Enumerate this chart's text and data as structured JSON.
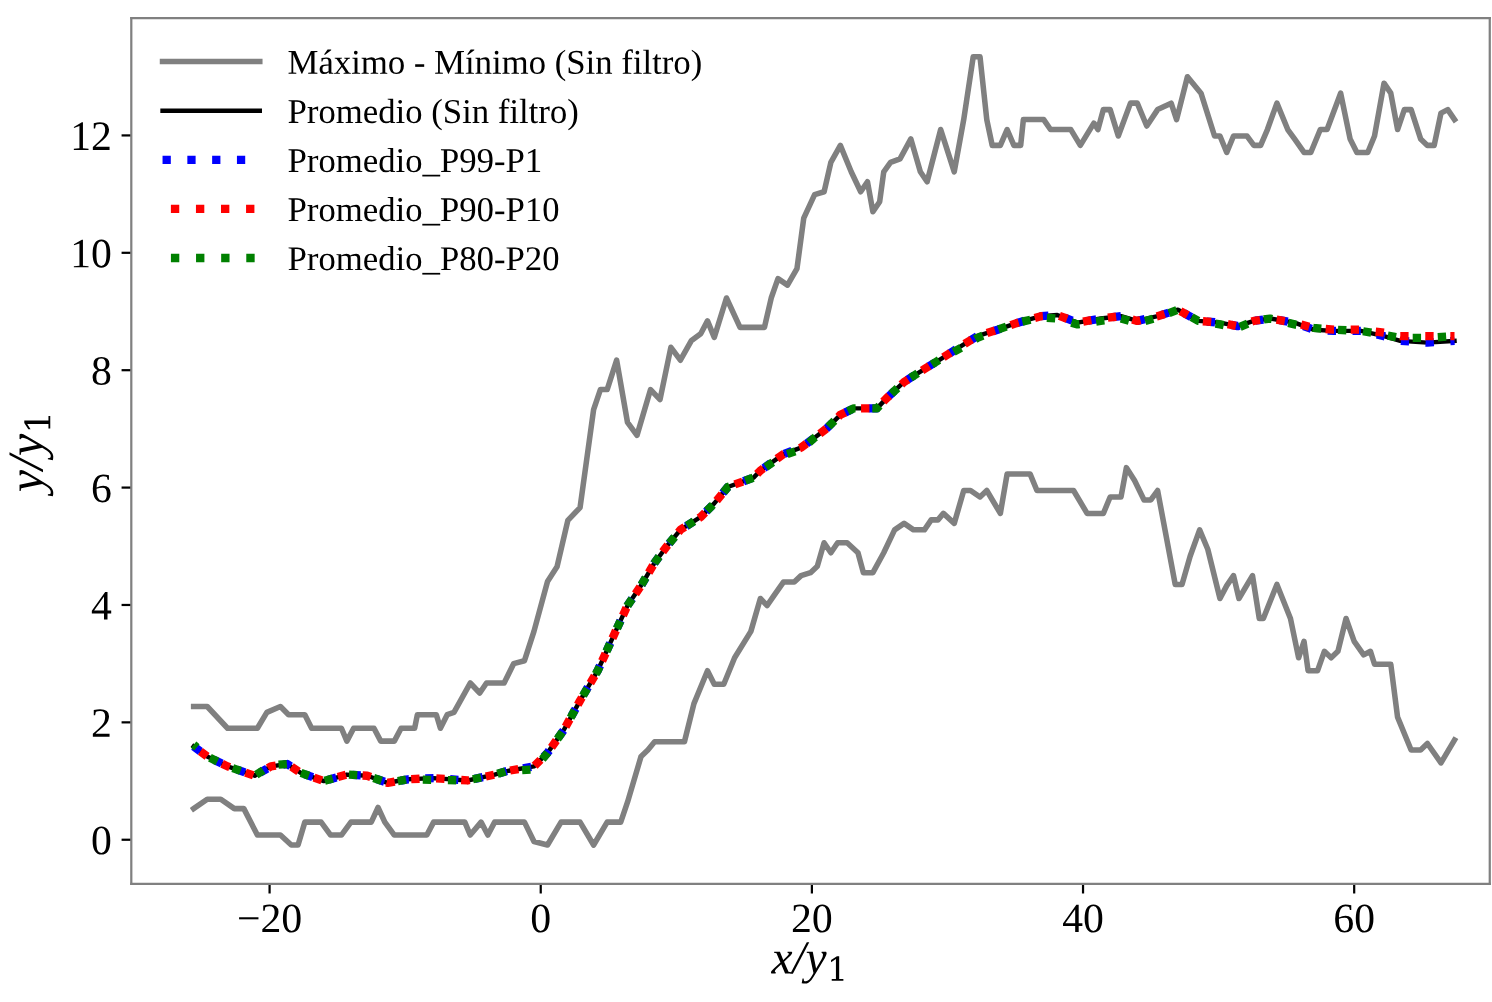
{
  "chart_data": {
    "type": "line",
    "xlabel": "x/y$_{1}$",
    "ylabel": "y/y$_{1}$",
    "xlim": [
      -30.2,
      70.0
    ],
    "ylim": [
      -0.75,
      14.0
    ],
    "xticks": [
      -20,
      0,
      20,
      40,
      60
    ],
    "yticks": [
      0,
      2,
      4,
      6,
      8,
      10,
      12
    ],
    "grid": false,
    "legend": "top left",
    "series": [
      {
        "name": "Máximo - Mínimo (Sin filtro)",
        "color": "#808080",
        "line_style": "solid",
        "x": [
          -25.6,
          -24.6,
          -23.1,
          -20.9,
          -20.2,
          -19.2,
          -18.6,
          -17.4,
          -16.9,
          -14.7,
          -14.3,
          -13.8,
          -12.3,
          -11.8,
          -10.8,
          -10.3,
          -9.3,
          -9.1,
          -7.7,
          -7.4,
          -6.9,
          -6.4,
          -5.2,
          -4.5,
          -4.0,
          -2.7,
          -2.0,
          -1.2,
          -0.5,
          0.5,
          1.2,
          2.0,
          2.9,
          3.9,
          4.4,
          4.9,
          5.6,
          6.4,
          7.1,
          8.1,
          8.8,
          9.6,
          10.3,
          11.1,
          11.8,
          12.3,
          12.8,
          13.7,
          14.7,
          16.5,
          17.0,
          17.5,
          18.2,
          18.9,
          19.4,
          20.2,
          20.9,
          21.4,
          22.1,
          22.9,
          23.6,
          24.1,
          24.5,
          25.0,
          25.3,
          25.8,
          26.5,
          27.3,
          28.0,
          28.5,
          29.5,
          30.5,
          31.2,
          31.9,
          32.4,
          32.9,
          33.3,
          33.9,
          34.4,
          34.9,
          35.4,
          35.6,
          37.1,
          37.6,
          39.1,
          39.8,
          40.8,
          41.1,
          41.5,
          42.0,
          42.6,
          43.5,
          44.0,
          44.7,
          45.5,
          46.5,
          46.9,
          47.7,
          48.7,
          49.7,
          50.1,
          50.6,
          51.1,
          52.1,
          52.6,
          53.1,
          53.6,
          54.3,
          55.1,
          55.6,
          56.3,
          56.8,
          57.5,
          58.0,
          59.0,
          59.7,
          60.2,
          61.0,
          61.5,
          62.2,
          62.7,
          63.2,
          63.7,
          64.2,
          64.9,
          65.4,
          65.9,
          66.4,
          66.9,
          67.4
        ],
        "values": [
          2.27,
          2.27,
          1.9,
          1.9,
          2.17,
          2.27,
          2.13,
          2.13,
          1.9,
          1.9,
          1.68,
          1.9,
          1.9,
          1.68,
          1.68,
          1.9,
          1.9,
          2.13,
          2.13,
          1.9,
          2.13,
          2.17,
          2.67,
          2.5,
          2.67,
          2.67,
          3.0,
          3.05,
          3.55,
          4.4,
          4.65,
          5.44,
          5.66,
          7.33,
          7.67,
          7.67,
          8.17,
          7.11,
          6.89,
          7.67,
          7.5,
          8.39,
          8.17,
          8.5,
          8.62,
          8.84,
          8.56,
          9.23,
          8.73,
          8.73,
          9.23,
          9.56,
          9.45,
          9.73,
          10.59,
          10.99,
          11.04,
          11.54,
          11.83,
          11.38,
          11.04,
          11.21,
          10.7,
          10.87,
          11.38,
          11.54,
          11.6,
          11.94,
          11.38,
          11.21,
          12.1,
          11.38,
          12.27,
          13.34,
          13.34,
          12.27,
          11.83,
          11.83,
          12.1,
          11.83,
          11.83,
          12.27,
          12.27,
          12.1,
          12.1,
          11.83,
          12.21,
          12.1,
          12.44,
          12.44,
          11.99,
          12.55,
          12.55,
          12.16,
          12.44,
          12.55,
          12.27,
          13.0,
          12.72,
          11.99,
          11.99,
          11.71,
          11.99,
          11.99,
          11.83,
          11.83,
          12.1,
          12.55,
          12.1,
          11.94,
          11.71,
          11.71,
          12.1,
          12.1,
          12.72,
          11.94,
          11.71,
          11.71,
          11.99,
          12.89,
          12.72,
          12.1,
          12.44,
          12.44,
          11.94,
          11.83,
          11.83,
          12.38,
          12.44,
          12.27
        ]
      },
      {
        "color": "#808080",
        "line_style": "solid",
        "x": [
          -25.6,
          -24.6,
          -23.6,
          -22.6,
          -21.9,
          -20.9,
          -19.2,
          -18.4,
          -17.9,
          -17.4,
          -16.2,
          -15.5,
          -14.7,
          -14.0,
          -12.5,
          -12.0,
          -11.5,
          -10.8,
          -8.4,
          -7.9,
          -5.6,
          -5.2,
          -4.4,
          -3.9,
          -3.4,
          -1.2,
          -0.5,
          0.5,
          1.5,
          2.9,
          3.9,
          4.9,
          5.9,
          6.4,
          7.4,
          7.9,
          8.4,
          10.6,
          11.3,
          12.3,
          12.8,
          13.5,
          14.3,
          15.5,
          16.2,
          16.7,
          17.2,
          17.9,
          18.7,
          19.2,
          19.9,
          20.4,
          20.9,
          21.4,
          21.9,
          22.6,
          23.4,
          23.8,
          24.5,
          25.3,
          26.1,
          26.8,
          27.5,
          28.3,
          28.8,
          29.3,
          29.7,
          30.5,
          31.2,
          31.7,
          32.4,
          32.9,
          33.9,
          34.4,
          36.1,
          36.6,
          39.3,
          40.3,
          41.5,
          42.0,
          42.8,
          43.2,
          43.8,
          44.5,
          45.0,
          45.5,
          46.8,
          47.3,
          47.9,
          48.6,
          49.2,
          50.1,
          50.6,
          51.1,
          51.5,
          52.5,
          53.0,
          53.3,
          54.3,
          55.3,
          55.9,
          56.3,
          56.6,
          57.3,
          57.8,
          58.3,
          58.8,
          59.4,
          60.0,
          60.7,
          61.2,
          61.5,
          62.7,
          63.2,
          64.2,
          64.9,
          65.4,
          66.4,
          67.4
        ],
        "values": [
          0.53,
          0.69,
          0.69,
          0.53,
          0.53,
          0.08,
          0.08,
          -0.09,
          -0.09,
          0.3,
          0.3,
          0.08,
          0.08,
          0.3,
          0.3,
          0.55,
          0.3,
          0.08,
          0.08,
          0.3,
          0.3,
          0.08,
          0.3,
          0.08,
          0.3,
          0.3,
          -0.03,
          -0.09,
          0.3,
          0.3,
          -0.09,
          0.3,
          0.3,
          0.64,
          1.42,
          1.53,
          1.67,
          1.67,
          2.32,
          2.88,
          2.65,
          2.65,
          3.1,
          3.55,
          4.11,
          3.99,
          4.16,
          4.39,
          4.39,
          4.5,
          4.55,
          4.66,
          5.06,
          4.89,
          5.06,
          5.06,
          4.89,
          4.55,
          4.55,
          4.89,
          5.28,
          5.39,
          5.28,
          5.28,
          5.45,
          5.45,
          5.56,
          5.39,
          5.95,
          5.95,
          5.84,
          5.95,
          5.56,
          6.23,
          6.23,
          5.95,
          5.95,
          5.56,
          5.56,
          5.84,
          5.84,
          6.34,
          6.12,
          5.79,
          5.79,
          5.95,
          4.35,
          4.35,
          4.83,
          5.28,
          4.95,
          4.11,
          4.33,
          4.5,
          4.11,
          4.5,
          3.77,
          3.77,
          4.35,
          3.77,
          3.1,
          3.38,
          2.88,
          2.88,
          3.21,
          3.1,
          3.21,
          3.77,
          3.38,
          3.15,
          3.21,
          2.99,
          2.99,
          2.09,
          1.53,
          1.53,
          1.64,
          1.31,
          1.7
        ]
      },
      {
        "name": "Promedio (Sin filtro)",
        "color": "#000000",
        "line_style": "solid",
        "x": [
          -25.6,
          -24.6,
          -23.1,
          -21.1,
          -19.9,
          -18.7,
          -17.7,
          -16.0,
          -14.3,
          -12.8,
          -11.3,
          -9.8,
          -7.9,
          -5.4,
          -3.4,
          -2.5,
          -0.5,
          0.5,
          1.7,
          2.9,
          4.2,
          5.4,
          6.4,
          7.4,
          8.4,
          9.3,
          10.3,
          11.8,
          12.8,
          13.8,
          15.7,
          16.2,
          17.9,
          19.2,
          20.2,
          21.1,
          22.1,
          23.1,
          24.8,
          25.5,
          26.8,
          28.3,
          29.5,
          31.0,
          32.2,
          33.7,
          35.2,
          36.9,
          38.1,
          39.6,
          41.3,
          42.8,
          44.0,
          45.5,
          47.0,
          48.5,
          50.1,
          51.4,
          52.6,
          53.8,
          55.6,
          57.0,
          58.5,
          60.5,
          62.2,
          63.4,
          65.4,
          67.4
        ],
        "values": [
          1.59,
          1.42,
          1.25,
          1.09,
          1.25,
          1.29,
          1.14,
          1.0,
          1.11,
          1.09,
          0.97,
          1.03,
          1.05,
          1.01,
          1.11,
          1.17,
          1.25,
          1.48,
          1.87,
          2.37,
          2.88,
          3.49,
          3.99,
          4.33,
          4.72,
          5.0,
          5.28,
          5.5,
          5.73,
          6.01,
          6.17,
          6.29,
          6.57,
          6.68,
          6.85,
          7.01,
          7.24,
          7.35,
          7.35,
          7.52,
          7.8,
          8.02,
          8.19,
          8.41,
          8.58,
          8.69,
          8.81,
          8.92,
          8.94,
          8.81,
          8.88,
          8.92,
          8.84,
          8.92,
          9.03,
          8.84,
          8.81,
          8.75,
          8.84,
          8.88,
          8.81,
          8.69,
          8.67,
          8.67,
          8.58,
          8.5,
          8.47,
          8.5
        ]
      },
      {
        "name": "Promedio_P99-P1",
        "color": "#0000ff",
        "line_style": "dotted",
        "x": [
          -25.6,
          -24.6,
          -23.1,
          -21.1,
          -19.9,
          -18.7,
          -17.7,
          -16.0,
          -14.3,
          -12.8,
          -11.3,
          -9.8,
          -7.9,
          -5.4,
          -3.4,
          -2.5,
          -0.5,
          0.5,
          1.7,
          2.9,
          4.2,
          5.4,
          6.4,
          7.4,
          8.4,
          9.3,
          10.3,
          11.8,
          12.8,
          13.8,
          15.7,
          16.2,
          17.9,
          19.2,
          20.2,
          21.1,
          22.1,
          23.1,
          24.8,
          25.5,
          26.8,
          28.3,
          29.5,
          31.0,
          32.2,
          33.7,
          35.2,
          36.9,
          38.1,
          39.6,
          41.3,
          42.8,
          44.0,
          45.5,
          47.0,
          48.5,
          50.1,
          51.4,
          52.6,
          53.8,
          55.6,
          57.0,
          58.5,
          60.5,
          62.2,
          63.4,
          65.4,
          67.4
        ],
        "values": [
          1.59,
          1.42,
          1.25,
          1.09,
          1.25,
          1.29,
          1.14,
          1.0,
          1.11,
          1.09,
          0.97,
          1.03,
          1.05,
          1.01,
          1.11,
          1.17,
          1.25,
          1.48,
          1.87,
          2.37,
          2.88,
          3.49,
          3.99,
          4.33,
          4.72,
          5.0,
          5.28,
          5.5,
          5.73,
          6.01,
          6.17,
          6.29,
          6.57,
          6.68,
          6.85,
          7.01,
          7.24,
          7.35,
          7.35,
          7.52,
          7.8,
          8.02,
          8.19,
          8.41,
          8.58,
          8.69,
          8.81,
          8.92,
          8.94,
          8.81,
          8.88,
          8.92,
          8.84,
          8.92,
          9.03,
          8.84,
          8.81,
          8.75,
          8.84,
          8.88,
          8.81,
          8.69,
          8.67,
          8.67,
          8.58,
          8.5,
          8.47,
          8.5
        ]
      },
      {
        "name": "Promedio_P90-P10",
        "color": "#ff0000",
        "line_style": "dotted",
        "x": [
          -25.6,
          -24.6,
          -23.1,
          -21.1,
          -19.9,
          -18.7,
          -17.7,
          -16.0,
          -14.3,
          -12.8,
          -11.3,
          -9.8,
          -7.9,
          -5.4,
          -3.4,
          -2.5,
          -0.5,
          0.5,
          1.7,
          2.9,
          4.2,
          5.4,
          6.4,
          7.4,
          8.4,
          9.3,
          10.3,
          11.8,
          12.8,
          13.8,
          15.7,
          16.2,
          17.9,
          19.2,
          20.2,
          21.1,
          22.1,
          23.1,
          24.8,
          25.5,
          26.8,
          28.3,
          29.5,
          31.0,
          32.2,
          33.7,
          35.2,
          36.9,
          38.1,
          39.6,
          41.3,
          42.8,
          44.0,
          45.5,
          47.0,
          48.5,
          50.1,
          51.4,
          52.6,
          53.8,
          55.6,
          57.0,
          58.5,
          60.5,
          62.2,
          63.4,
          65.4,
          67.4
        ],
        "values": [
          1.59,
          1.42,
          1.25,
          1.09,
          1.25,
          1.29,
          1.14,
          1.0,
          1.11,
          1.09,
          0.97,
          1.03,
          1.05,
          1.01,
          1.11,
          1.17,
          1.25,
          1.48,
          1.87,
          2.37,
          2.88,
          3.49,
          3.99,
          4.33,
          4.72,
          5.0,
          5.28,
          5.5,
          5.73,
          6.01,
          6.17,
          6.29,
          6.57,
          6.68,
          6.85,
          7.01,
          7.24,
          7.35,
          7.35,
          7.52,
          7.8,
          8.02,
          8.19,
          8.41,
          8.58,
          8.69,
          8.81,
          8.92,
          8.94,
          8.81,
          8.88,
          8.92,
          8.84,
          8.92,
          9.03,
          8.84,
          8.81,
          8.75,
          8.84,
          8.88,
          8.81,
          8.72,
          8.69,
          8.69,
          8.64,
          8.58,
          8.58,
          8.58
        ]
      },
      {
        "name": "Promedio_P80-P20",
        "color": "#008000",
        "line_style": "dotted",
        "x": [
          -25.6,
          -24.6,
          -23.1,
          -21.1,
          -19.9,
          -18.7,
          -17.7,
          -16.0,
          -14.3,
          -12.8,
          -11.3,
          -9.8,
          -7.9,
          -5.4,
          -3.4,
          -2.5,
          -0.5,
          0.5,
          1.7,
          2.9,
          4.2,
          5.4,
          6.4,
          7.4,
          8.4,
          9.3,
          10.3,
          11.8,
          12.8,
          13.8,
          15.7,
          16.2,
          17.9,
          19.2,
          20.2,
          21.1,
          22.1,
          23.1,
          24.8,
          25.5,
          26.8,
          28.3,
          29.5,
          31.0,
          32.2,
          33.7,
          35.2,
          36.9,
          38.1,
          39.6,
          41.3,
          42.8,
          44.0,
          45.5,
          47.0,
          48.5,
          50.1,
          51.4,
          52.6,
          53.8,
          55.6,
          57.0,
          58.5,
          60.5,
          62.2,
          63.4,
          65.4,
          67.4
        ],
        "values": [
          1.62,
          1.42,
          1.25,
          1.09,
          1.27,
          1.29,
          1.14,
          1.0,
          1.11,
          1.09,
          0.97,
          1.03,
          1.02,
          1.01,
          1.11,
          1.17,
          1.2,
          1.48,
          1.87,
          2.37,
          2.88,
          3.49,
          3.99,
          4.33,
          4.72,
          5.0,
          5.28,
          5.5,
          5.73,
          6.01,
          6.17,
          6.29,
          6.55,
          6.65,
          6.85,
          7.01,
          7.24,
          7.35,
          7.35,
          7.52,
          7.8,
          8.02,
          8.19,
          8.38,
          8.55,
          8.69,
          8.81,
          8.9,
          8.88,
          8.78,
          8.84,
          8.88,
          8.8,
          8.9,
          9.03,
          8.84,
          8.78,
          8.72,
          8.84,
          8.88,
          8.78,
          8.72,
          8.69,
          8.67,
          8.6,
          8.55,
          8.55,
          8.58
        ]
      }
    ]
  }
}
